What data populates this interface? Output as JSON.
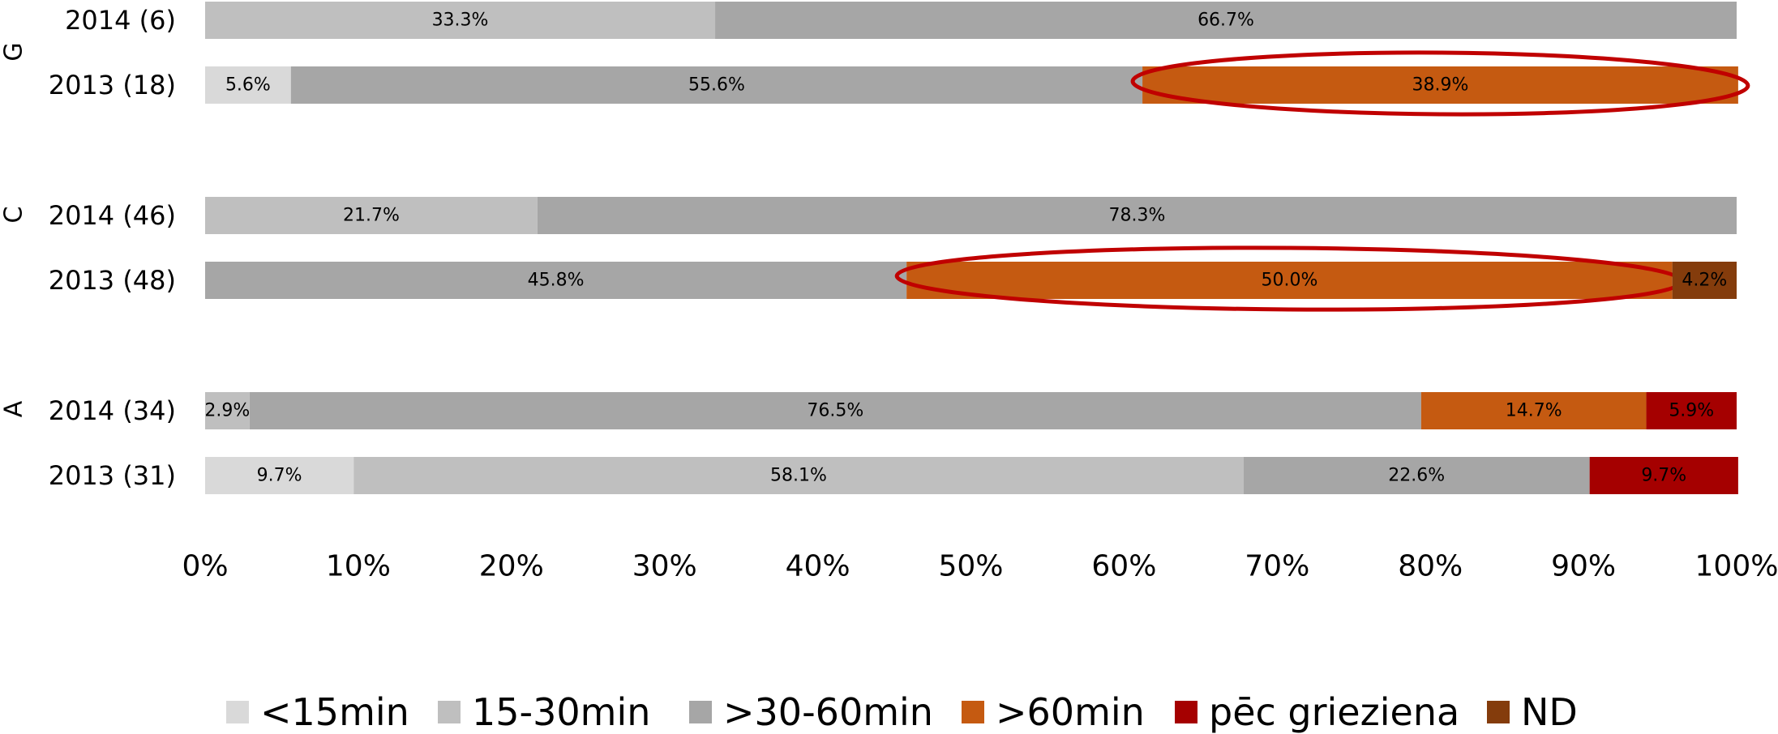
{
  "chart_data": {
    "type": "bar",
    "orientation": "horizontal",
    "stacked": "percent",
    "xlim": [
      0,
      100
    ],
    "x_ticks": [
      "0%",
      "10%",
      "20%",
      "30%",
      "40%",
      "50%",
      "60%",
      "70%",
      "80%",
      "90%",
      "100%"
    ],
    "groups": [
      {
        "label": "G",
        "rows": [
          {
            "label": "2014 (6)",
            "values": [
              0,
              33.3,
              66.7,
              0,
              0,
              0
            ],
            "value_labels": [
              "",
              "33.3%",
              "66.7%",
              "",
              "",
              ""
            ]
          },
          {
            "label": "2013 (18)",
            "values": [
              5.6,
              0,
              55.6,
              38.9,
              0,
              0
            ],
            "value_labels": [
              "5.6%",
              "",
              "55.6%",
              "38.9%",
              "",
              ""
            ],
            "highlighted_segment": 3
          }
        ]
      },
      {
        "label": "C",
        "rows": [
          {
            "label": "2014 (46)",
            "values": [
              0,
              21.7,
              78.3,
              0,
              0,
              0
            ],
            "value_labels": [
              "",
              "21.7%",
              "78.3%",
              "",
              "",
              ""
            ]
          },
          {
            "label": "2013 (48)",
            "values": [
              0,
              0,
              45.8,
              50.0,
              0,
              4.2
            ],
            "value_labels": [
              "",
              "",
              "45.8%",
              "50.0%",
              "",
              "4.2%"
            ],
            "highlighted_segment": 3
          }
        ]
      },
      {
        "label": "A",
        "rows": [
          {
            "label": "2014 (34)",
            "values": [
              0,
              2.9,
              76.5,
              14.7,
              5.9,
              0
            ],
            "value_labels": [
              "",
              "2.9%",
              "76.5%",
              "14.7%",
              "5.9%",
              ""
            ]
          },
          {
            "label": "2013 (31)",
            "values": [
              9.7,
              58.1,
              22.6,
              0,
              9.7,
              0
            ],
            "value_labels": [
              "9.7%",
              "58.1%",
              "22.6%",
              "",
              "9.7%",
              ""
            ]
          }
        ]
      }
    ],
    "series": [
      {
        "name": "<15min",
        "color": "#d9d9d9"
      },
      {
        "name": "15-30min",
        "color": "#bfbfbf"
      },
      {
        "name": ">30-60min",
        "color": "#a6a6a6"
      },
      {
        "name": ">60min",
        "color": "#c55a11"
      },
      {
        "name": "pēc grieziena",
        "color": "#a50000"
      },
      {
        "name": "ND",
        "color": "#843c0c"
      }
    ],
    "highlight_color": "#c00000",
    "legend_position": "bottom"
  }
}
